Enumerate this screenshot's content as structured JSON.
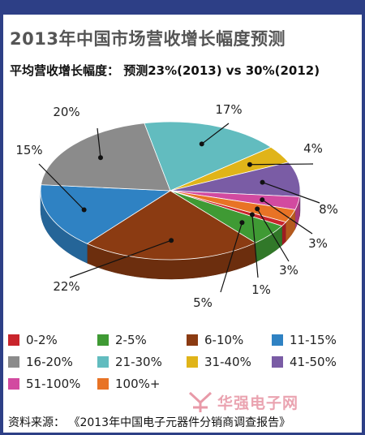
{
  "title": "2013年中国市场营收增长幅度预测",
  "subtitle": "平均营收增长幅度： 预测23%(2013) vs 30%(2012)",
  "source": "资料来源： 《2013年中国电子元器件分销商调查报告》",
  "watermark": "华强电子网",
  "chart_data": {
    "type": "pie",
    "style": "3d",
    "legend_placement": "bottom",
    "slices": [
      {
        "label": "0-2%",
        "display": "1%",
        "value": 1,
        "color": "#c9252c"
      },
      {
        "label": "2-5%",
        "display": "5%",
        "value": 5,
        "color": "#3f9a34"
      },
      {
        "label": "6-10%",
        "display": "22%",
        "value": 22,
        "color": "#8b3b12"
      },
      {
        "label": "11-15%",
        "display": "15%",
        "value": 15,
        "color": "#2f82c3"
      },
      {
        "label": "16-20%",
        "display": "20%",
        "value": 20,
        "color": "#8b8b8b"
      },
      {
        "label": "21-30%",
        "display": "17%",
        "value": 17,
        "color": "#62bcbf"
      },
      {
        "label": "31-40%",
        "display": "4%",
        "value": 4,
        "color": "#e0b419"
      },
      {
        "label": "41-50%",
        "display": "8%",
        "value": 8,
        "color": "#7a5ca5"
      },
      {
        "label": "51-100%",
        "display": "3%",
        "value": 3,
        "color": "#d24aa0"
      },
      {
        "label": "100%+",
        "display": "3%",
        "value": 3,
        "color": "#e87325"
      }
    ]
  }
}
